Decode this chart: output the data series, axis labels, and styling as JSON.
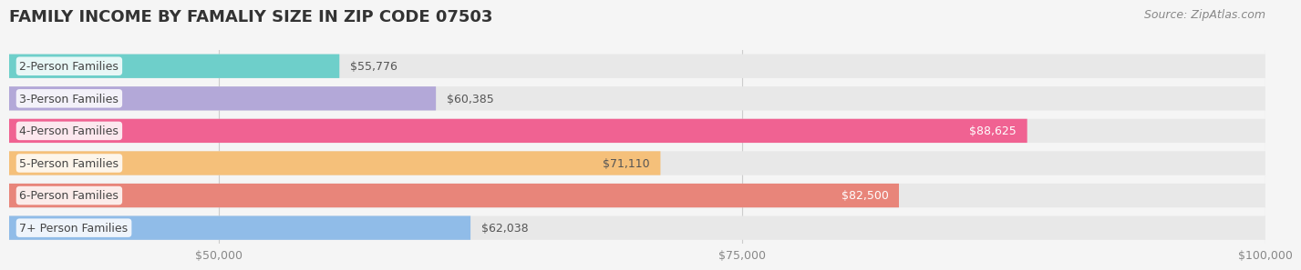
{
  "title": "FAMILY INCOME BY FAMALIY SIZE IN ZIP CODE 07503",
  "source": "Source: ZipAtlas.com",
  "categories": [
    "2-Person Families",
    "3-Person Families",
    "4-Person Families",
    "5-Person Families",
    "6-Person Families",
    "7+ Person Families"
  ],
  "values": [
    55776,
    60385,
    88625,
    71110,
    82500,
    62038
  ],
  "bar_colors": [
    "#6ecfca",
    "#b3a8d8",
    "#f06292",
    "#f5c07a",
    "#e8857a",
    "#90bce8"
  ],
  "label_colors": [
    "#555555",
    "#555555",
    "#ffffff",
    "#555555",
    "#ffffff",
    "#555555"
  ],
  "background_color": "#f5f5f5",
  "bar_bg_color": "#ebebeb",
  "xlim": [
    40000,
    100000
  ],
  "xticks": [
    50000,
    75000,
    100000
  ],
  "xtick_labels": [
    "$50,000",
    "$75,000",
    "$100,000"
  ],
  "title_fontsize": 13,
  "label_fontsize": 9,
  "value_fontsize": 9,
  "source_fontsize": 9
}
